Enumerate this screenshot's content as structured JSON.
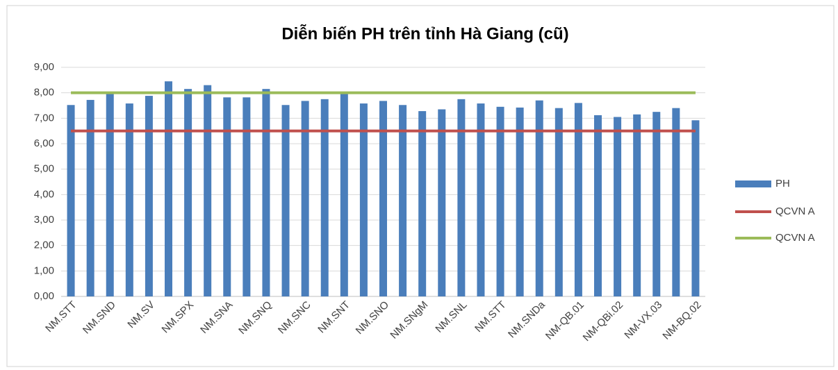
{
  "chart_data": {
    "type": "bar",
    "title": "Diễn biến PH trên tỉnh Hà Giang (cũ)",
    "categories": [
      "NM.STT",
      null,
      "NM.SND",
      null,
      "NM.SV",
      null,
      "NM.SPX",
      null,
      "NM.SNA",
      null,
      "NM.SNQ",
      null,
      "NM.SNC",
      null,
      "NM.SNT",
      null,
      "NM.SNO",
      null,
      "NM.SNgM",
      null,
      "NM.SNL",
      null,
      "NM.STT",
      null,
      "NM.SNDa",
      null,
      "NM-QB.01",
      null,
      "NM-QBi.02",
      null,
      "NM-VX.03",
      null,
      "NM-BQ.02"
    ],
    "series": [
      {
        "name": "PH",
        "type": "bar",
        "color": "#4a7ebb",
        "values": [
          7.52,
          7.72,
          7.95,
          7.58,
          7.88,
          8.45,
          8.15,
          8.3,
          7.82,
          7.82,
          8.15,
          7.52,
          7.68,
          7.75,
          7.95,
          7.58,
          7.68,
          7.52,
          7.28,
          7.35,
          7.75,
          7.58,
          7.45,
          7.42,
          7.7,
          7.4,
          7.6,
          7.12,
          7.05,
          7.15,
          7.25,
          7.4,
          6.92
        ]
      },
      {
        "name": "QCVN A",
        "type": "line",
        "color": "#c0504d",
        "values": [
          6.5,
          6.5,
          6.5,
          6.5,
          6.5,
          6.5,
          6.5,
          6.5,
          6.5,
          6.5,
          6.5,
          6.5,
          6.5,
          6.5,
          6.5,
          6.5,
          6.5,
          6.5,
          6.5,
          6.5,
          6.5,
          6.5,
          6.5,
          6.5,
          6.5,
          6.5,
          6.5,
          6.5,
          6.5,
          6.5,
          6.5,
          6.5,
          6.5
        ]
      },
      {
        "name": "QCVN A",
        "type": "line",
        "color": "#9bbb59",
        "values": [
          8,
          8,
          8,
          8,
          8,
          8,
          8,
          8,
          8,
          8,
          8,
          8,
          8,
          8,
          8,
          8,
          8,
          8,
          8,
          8,
          8,
          8,
          8,
          8,
          8,
          8,
          8,
          8,
          8,
          8,
          8,
          8,
          8
        ]
      }
    ],
    "ylim": [
      0,
      9
    ],
    "yticks": [
      {
        "value": 0,
        "label": "0,00"
      },
      {
        "value": 1,
        "label": "1,00"
      },
      {
        "value": 2,
        "label": "2,00"
      },
      {
        "value": 3,
        "label": "3,00"
      },
      {
        "value": 4,
        "label": "4,00"
      },
      {
        "value": 5,
        "label": "5,00"
      },
      {
        "value": 6,
        "label": "6,00"
      },
      {
        "value": 7,
        "label": "7,00"
      },
      {
        "value": 8,
        "label": "8,00"
      },
      {
        "value": 9,
        "label": "9,00"
      }
    ],
    "grid": true,
    "legend": "right"
  }
}
